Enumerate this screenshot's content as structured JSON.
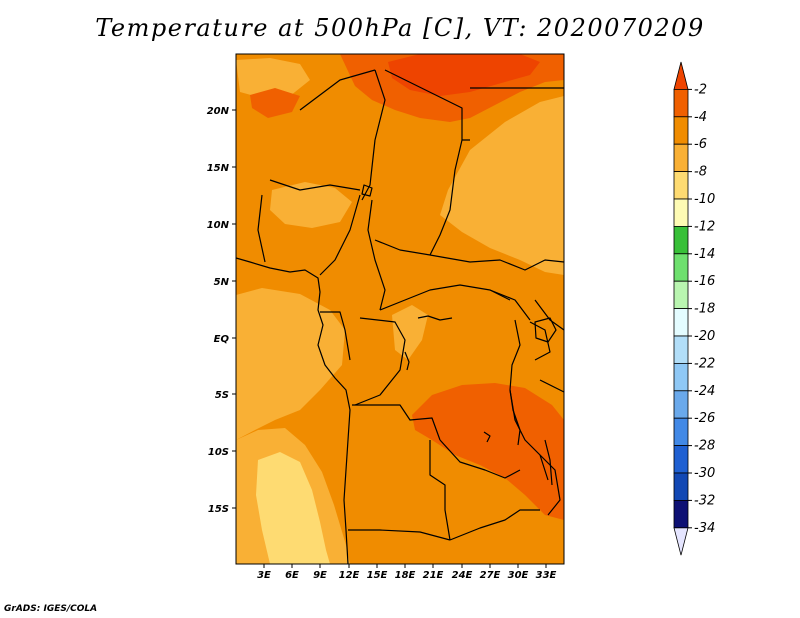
{
  "title": "Temperature at 500hPa [C], VT: 2020070209",
  "credit": "GrADS: IGES/COLA",
  "lat_labels": [
    "20N",
    "15N",
    "10N",
    "5N",
    "EQ",
    "5S",
    "10S",
    "15S"
  ],
  "lon_labels": [
    "3E",
    "6E",
    "9E",
    "12E",
    "15E",
    "18E",
    "21E",
    "24E",
    "27E",
    "30E",
    "33E"
  ],
  "colorbar": {
    "labels": [
      "-2",
      "-4",
      "-6",
      "-8",
      "-10",
      "-12",
      "-14",
      "-16",
      "-18",
      "-20",
      "-22",
      "-24",
      "-26",
      "-28",
      "-30",
      "-32",
      "-34"
    ],
    "colors": [
      "#ee4400",
      "#f06000",
      "#f08c00",
      "#f9b035",
      "#fedb72",
      "#fefbb4",
      "#38c038",
      "#6ee06e",
      "#b9f5b0",
      "#e4fcff",
      "#b2def8",
      "#8fc8f5",
      "#6aa9eb",
      "#4289e6",
      "#1f60d2",
      "#1248b4",
      "#0e1174",
      "#e5e5ff"
    ],
    "data_classes": [
      -2,
      -4,
      -6,
      -8,
      -10,
      -12,
      -14,
      -16,
      -18,
      -20,
      -22,
      -24,
      -26,
      -28,
      -30,
      -32,
      -34
    ]
  }
}
